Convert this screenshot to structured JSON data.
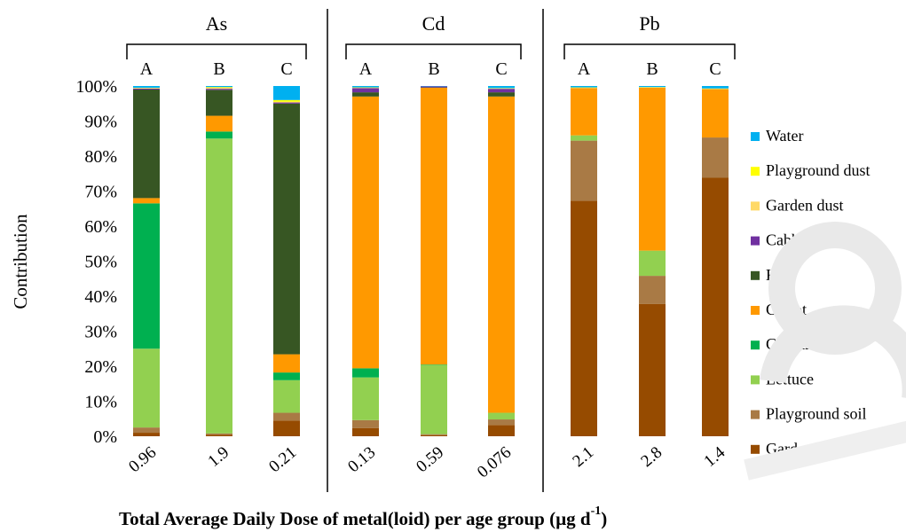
{
  "chart_data": {
    "type": "bar",
    "stacked": true,
    "percent": true,
    "ylabel": "Contribution",
    "xlabel": "Total Average Daily Dose of metal(loid) per age group (µg d",
    "xlabel_superscript": "-1",
    "xlabel_close": ")",
    "ylim": [
      0,
      100
    ],
    "yticks": [
      "0%",
      "10%",
      "20%",
      "30%",
      "40%",
      "50%",
      "60%",
      "70%",
      "80%",
      "90%",
      "100%"
    ],
    "legend_position": "right",
    "series": [
      {
        "name": "Garden soil",
        "color": "#964B00"
      },
      {
        "name": "Playground soil",
        "color": "#A97A45"
      },
      {
        "name": "Lettuce",
        "color": "#92D050"
      },
      {
        "name": "Cilantro",
        "color": "#00B050"
      },
      {
        "name": "Carrot",
        "color": "#FF9900"
      },
      {
        "name": "Kale",
        "color": "#375623"
      },
      {
        "name": "Cabbage",
        "color": "#7030A0"
      },
      {
        "name": "Garden dust",
        "color": "#FFD966"
      },
      {
        "name": "Playground dust",
        "color": "#FFFF00"
      },
      {
        "name": "Water",
        "color": "#00B0F0"
      }
    ],
    "panels": [
      {
        "title": "As",
        "groups": [
          "A",
          "B",
          "C"
        ],
        "x_ticks": [
          "0.96",
          "1.9",
          "0.21"
        ],
        "values": [
          [
            1.0,
            1.5,
            22.5,
            41.5,
            1.5,
            31.0,
            0.3,
            0.1,
            0.1,
            0.5
          ],
          [
            0.4,
            0.4,
            84.2,
            2.0,
            4.5,
            7.4,
            0.3,
            0.3,
            0.2,
            0.3
          ],
          [
            4.5,
            2.2,
            9.3,
            2.2,
            5.2,
            71.6,
            0.3,
            0.2,
            0.5,
            4.0
          ]
        ]
      },
      {
        "title": "Cd",
        "groups": [
          "A",
          "B",
          "C"
        ],
        "x_ticks": [
          "0.13",
          "0.59",
          "0.076"
        ],
        "values": [
          [
            2.3,
            2.3,
            12.2,
            2.6,
            77.6,
            1.2,
            1.2,
            0.1,
            0.1,
            0.4
          ],
          [
            0.3,
            0.3,
            19.8,
            0.1,
            79.0,
            0.1,
            0.3,
            0.0,
            0.0,
            0.1
          ],
          [
            3.2,
            1.6,
            1.9,
            0.0,
            90.3,
            1.2,
            1.0,
            0.1,
            0.1,
            0.6
          ]
        ]
      },
      {
        "title": "Pb",
        "groups": [
          "A",
          "B",
          "C"
        ],
        "x_ticks": [
          "2.1",
          "2.8",
          "1.4"
        ],
        "values": [
          [
            67.2,
            17.2,
            1.5,
            0.0,
            13.5,
            0.0,
            0.0,
            0.1,
            0.1,
            0.4
          ],
          [
            37.8,
            8.0,
            7.2,
            0.0,
            46.5,
            0.0,
            0.0,
            0.1,
            0.1,
            0.3
          ],
          [
            73.8,
            11.5,
            0.0,
            0.0,
            13.8,
            0.0,
            0.0,
            0.1,
            0.1,
            0.7
          ]
        ]
      }
    ]
  }
}
